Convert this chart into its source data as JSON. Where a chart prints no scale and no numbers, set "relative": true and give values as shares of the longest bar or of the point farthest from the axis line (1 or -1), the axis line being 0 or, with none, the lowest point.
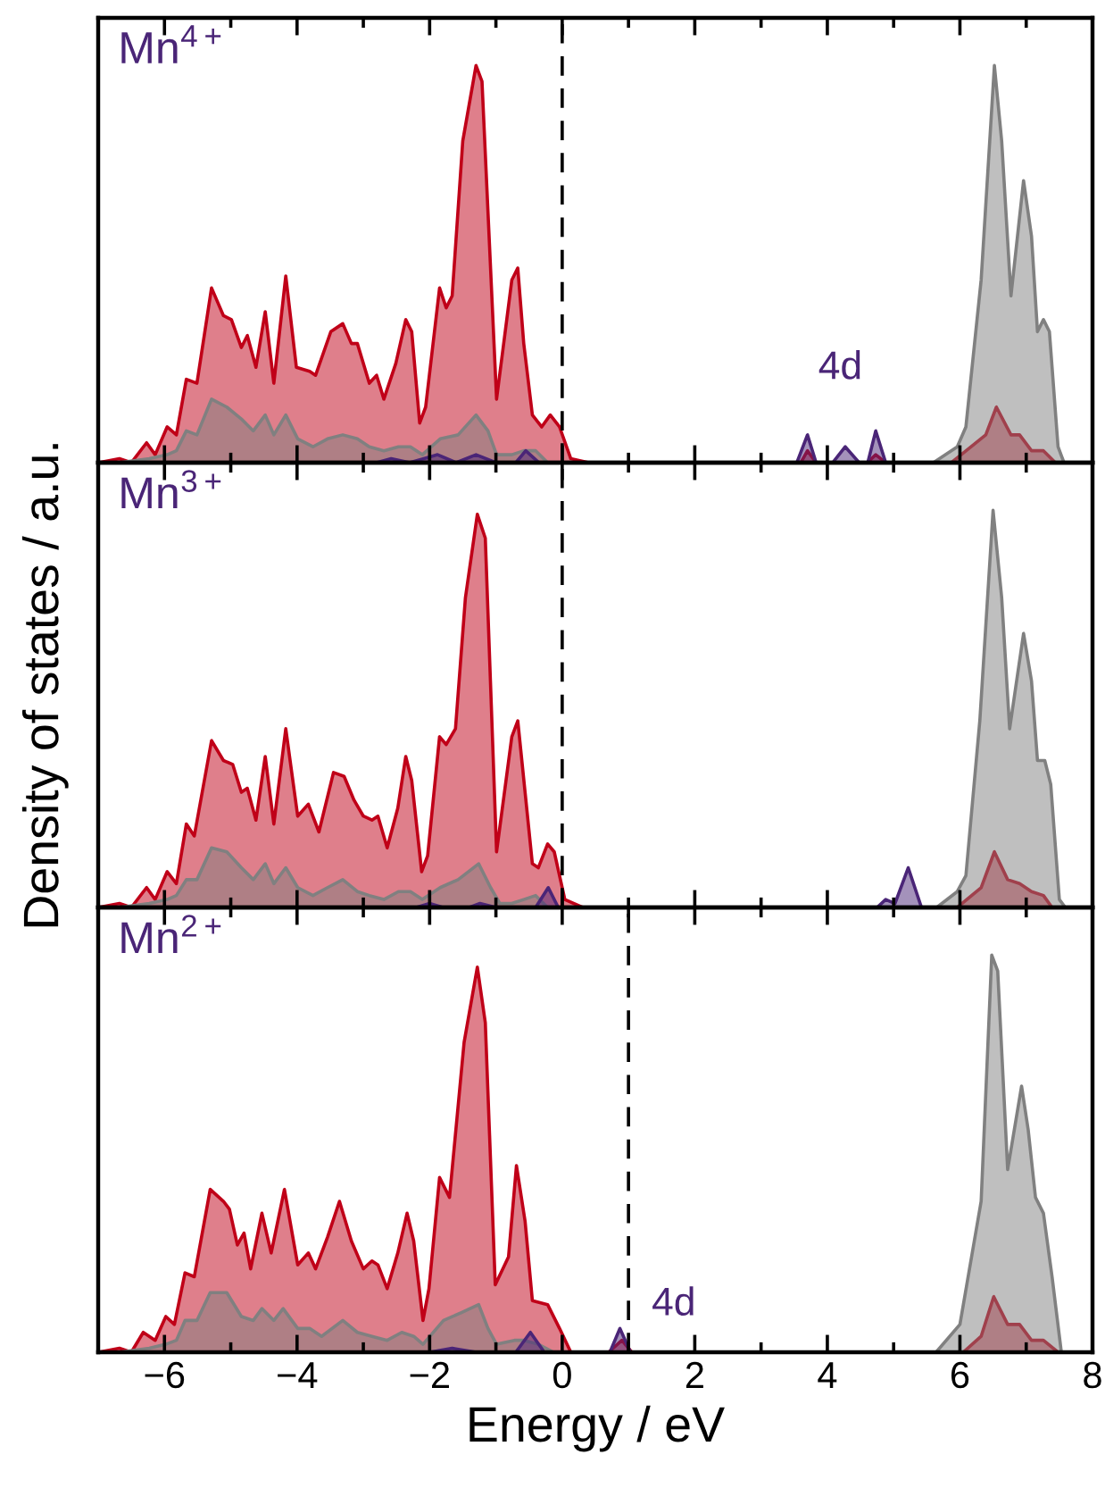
{
  "chart_data": [
    {
      "type": "area",
      "relative": true,
      "tick_labels": false,
      "grid": false,
      "legend": false,
      "xlim": [
        -7,
        8
      ],
      "xticks": [
        {
          "value": -6,
          "label": null
        },
        {
          "value": -5,
          "label": null
        },
        {
          "value": -4,
          "label": null
        },
        {
          "value": -3,
          "label": null
        },
        {
          "value": -2,
          "label": null
        },
        {
          "value": -1,
          "label": null
        },
        {
          "value": 0,
          "label": null
        },
        {
          "value": 1,
          "label": null
        },
        {
          "value": 2,
          "label": null
        },
        {
          "value": 3,
          "label": null
        },
        {
          "value": 4,
          "label": null
        },
        {
          "value": 5,
          "label": null
        },
        {
          "value": 6,
          "label": null
        },
        {
          "value": 7,
          "label": null
        },
        {
          "value": 8,
          "label": null
        }
      ],
      "annotations": [
        "Mn$^{4+}$",
        {
          "text": "4d",
          "x": 4.27,
          "y": 0.04
        }
      ],
      "ref_lines": [
        {
          "axis": "x",
          "value": 0,
          "color": "#000000",
          "line_style": "dashed"
        }
      ],
      "series": [
        {
          "color": "#c00018",
          "x": [
            -7,
            -6.68,
            -6.5,
            -6.27,
            -6.14,
            -5.96,
            -5.82,
            -5.67,
            -5.51,
            -5.29,
            -5.11,
            -4.99,
            -4.84,
            -4.75,
            -4.62,
            -4.48,
            -4.35,
            -4.17,
            -4.01,
            -3.81,
            -3.72,
            -3.49,
            -3.31,
            -3.18,
            -3.09,
            -2.91,
            -2.8,
            -2.69,
            -2.51,
            -2.36,
            -2.27,
            -2.15,
            -2.06,
            -1.85,
            -1.75,
            -1.66,
            -1.5,
            -1.3,
            -1.21,
            -0.99,
            -0.76,
            -0.67,
            -0.58,
            -0.45,
            -0.31,
            -0.18,
            -0.04,
            0.13,
            0.4,
            3.6,
            3.7,
            3.83,
            4.6,
            4.73,
            4.88,
            5.87,
            6.39,
            6.55,
            6.77,
            6.9,
            7.08,
            7.26,
            7.44,
            8
          ],
          "values": [
            0,
            0.01,
            0,
            0.05,
            0.02,
            0.09,
            0.07,
            0.21,
            0.2,
            0.44,
            0.37,
            0.36,
            0.29,
            0.32,
            0.24,
            0.38,
            0.2,
            0.47,
            0.24,
            0.23,
            0.22,
            0.33,
            0.35,
            0.3,
            0.3,
            0.2,
            0.22,
            0.16,
            0.25,
            0.36,
            0.33,
            0.1,
            0.14,
            0.44,
            0.39,
            0.42,
            0.81,
            1,
            0.96,
            0.16,
            0.46,
            0.49,
            0.3,
            0.12,
            0.09,
            0.12,
            0.09,
            0.01,
            0,
            0,
            0.03,
            0,
            0,
            0.02,
            0,
            0,
            0.07,
            0.14,
            0.07,
            0.07,
            0.03,
            0.03,
            0,
            0
          ]
        },
        {
          "color": "#808080",
          "x": [
            -6.68,
            -6.23,
            -5.96,
            -5.82,
            -5.67,
            -5.51,
            -5.29,
            -5.06,
            -4.84,
            -4.66,
            -4.48,
            -4.35,
            -4.17,
            -3.99,
            -3.76,
            -3.54,
            -3.31,
            -3.09,
            -2.91,
            -2.69,
            -2.47,
            -2.29,
            -2.11,
            -1.84,
            -1.57,
            -1.3,
            -1.12,
            -0.99,
            -0.76,
            -0.58,
            -0.4,
            -0.22,
            -0.04,
            5.6,
            5.96,
            6.09,
            6.32,
            6.52,
            6.63,
            6.77,
            6.96,
            7.08,
            7.17,
            7.26,
            7.35,
            7.48,
            7.57
          ],
          "values": [
            0,
            0.01,
            0.02,
            0.03,
            0.08,
            0.07,
            0.16,
            0.14,
            0.11,
            0.08,
            0.12,
            0.07,
            0.12,
            0.06,
            0.04,
            0.06,
            0.07,
            0.06,
            0.04,
            0.03,
            0.04,
            0.04,
            0.02,
            0.06,
            0.07,
            0.12,
            0.08,
            0.02,
            0.02,
            0.03,
            0.03,
            0,
            0,
            0,
            0.04,
            0.09,
            0.46,
            1,
            0.81,
            0.42,
            0.71,
            0.57,
            0.33,
            0.36,
            0.33,
            0.04,
            0
          ]
        },
        {
          "color": "#4a2577",
          "x": [
            -7,
            -2.8,
            -2.58,
            -2.3,
            -1.88,
            -1.6,
            -1.3,
            -1.0,
            -0.7,
            -0.55,
            -0.35,
            3.54,
            3.7,
            3.83,
            4.08,
            4.27,
            4.48,
            4.61,
            4.73,
            4.88,
            8
          ],
          "values": [
            0,
            0,
            0.01,
            0,
            0.02,
            0,
            0.02,
            0,
            0,
            0.03,
            0,
            0,
            0.07,
            0,
            0,
            0.04,
            0,
            0,
            0.08,
            0,
            0
          ]
        }
      ]
    },
    {
      "type": "area",
      "relative": true,
      "tick_labels": false,
      "grid": false,
      "legend": false,
      "ylabel": "Density of states / a.u.",
      "xlim": [
        -7,
        8
      ],
      "xticks": [
        {
          "value": -6,
          "label": null
        },
        {
          "value": -5,
          "label": null
        },
        {
          "value": -4,
          "label": null
        },
        {
          "value": -3,
          "label": null
        },
        {
          "value": -2,
          "label": null
        },
        {
          "value": -1,
          "label": null
        },
        {
          "value": 0,
          "label": null
        },
        {
          "value": 1,
          "label": null
        },
        {
          "value": 2,
          "label": null
        },
        {
          "value": 3,
          "label": null
        },
        {
          "value": 4,
          "label": null
        },
        {
          "value": 5,
          "label": null
        },
        {
          "value": 6,
          "label": null
        },
        {
          "value": 7,
          "label": null
        },
        {
          "value": 8,
          "label": null
        }
      ],
      "annotations": [
        "Mn$^{3+}$"
      ],
      "ref_lines": [
        {
          "axis": "x",
          "value": 0,
          "color": "#000000",
          "line_style": "dashed"
        }
      ],
      "series": [
        {
          "color": "#c00018",
          "x": [
            -7,
            -6.68,
            -6.5,
            -6.27,
            -6.14,
            -5.96,
            -5.82,
            -5.67,
            -5.55,
            -5.29,
            -5.11,
            -4.97,
            -4.84,
            -4.75,
            -4.62,
            -4.48,
            -4.35,
            -4.17,
            -3.99,
            -3.83,
            -3.67,
            -3.45,
            -3.29,
            -3.14,
            -3,
            -2.87,
            -2.78,
            -2.64,
            -2.48,
            -2.36,
            -2.27,
            -2.12,
            -2.03,
            -1.85,
            -1.75,
            -1.61,
            -1.46,
            -1.28,
            -1.16,
            -0.99,
            -0.76,
            -0.67,
            -0.56,
            -0.45,
            -0.36,
            -0.22,
            -0.12,
            0.04,
            0.31,
            5.96,
            6.32,
            6.52,
            6.72,
            6.9,
            7.08,
            7.26,
            7.39,
            8
          ],
          "values": [
            0,
            0.01,
            0,
            0.05,
            0.02,
            0.09,
            0.06,
            0.21,
            0.18,
            0.42,
            0.37,
            0.36,
            0.29,
            0.3,
            0.22,
            0.38,
            0.21,
            0.45,
            0.23,
            0.26,
            0.19,
            0.34,
            0.33,
            0.27,
            0.23,
            0.22,
            0.23,
            0.15,
            0.25,
            0.38,
            0.32,
            0.09,
            0.13,
            0.43,
            0.41,
            0.45,
            0.78,
            0.99,
            0.93,
            0.14,
            0.43,
            0.47,
            0.29,
            0.11,
            0.1,
            0.16,
            0.14,
            0.02,
            0,
            0,
            0.05,
            0.14,
            0.07,
            0.06,
            0.04,
            0.03,
            0,
            0
          ]
        },
        {
          "color": "#808080",
          "x": [
            -7,
            -6.68,
            -6.23,
            -5.96,
            -5.82,
            -5.67,
            -5.51,
            -5.29,
            -5.06,
            -4.84,
            -4.66,
            -4.48,
            -4.35,
            -4.17,
            -3.99,
            -3.76,
            -3.54,
            -3.31,
            -3.09,
            -2.91,
            -2.69,
            -2.47,
            -2.29,
            -2.11,
            -1.84,
            -1.57,
            -1.26,
            -1.08,
            -0.94,
            -0.76,
            -0.58,
            -0.4,
            -0.22,
            -0.04,
            5.65,
            5.96,
            6.09,
            6.3,
            6.5,
            6.63,
            6.75,
            6.96,
            7.08,
            7.17,
            7.28,
            7.37,
            7.5,
            7.59,
            8
          ],
          "values": [
            0,
            0,
            0.01,
            0.02,
            0.03,
            0.07,
            0.07,
            0.15,
            0.14,
            0.1,
            0.07,
            0.11,
            0.06,
            0.1,
            0.05,
            0.03,
            0.05,
            0.07,
            0.04,
            0.03,
            0.02,
            0.04,
            0.04,
            0.02,
            0.05,
            0.07,
            0.11,
            0.05,
            0.01,
            0.01,
            0.02,
            0.03,
            0,
            0,
            0,
            0.04,
            0.08,
            0.47,
            1,
            0.78,
            0.45,
            0.69,
            0.57,
            0.37,
            0.37,
            0.31,
            0.02,
            0,
            0
          ]
        },
        {
          "color": "#4a2577",
          "x": [
            -7,
            -2.2,
            -2,
            -1.8,
            -1.4,
            -1.24,
            -1.0,
            -0.4,
            -0.21,
            -0.06,
            4.75,
            4.88,
            5.02,
            5.22,
            5.42,
            8
          ],
          "values": [
            0,
            0,
            0.01,
            0,
            0,
            0.01,
            0,
            0,
            0.05,
            0,
            0,
            0.02,
            0.01,
            0.1,
            0,
            0
          ]
        }
      ]
    },
    {
      "type": "area",
      "relative": true,
      "tick_labels": "x",
      "grid": false,
      "legend": false,
      "xlabel": "Energy / eV",
      "xlim": [
        -7,
        8
      ],
      "xticks": [
        {
          "value": -6,
          "label": "−6"
        },
        {
          "value": -5,
          "label": null
        },
        {
          "value": -4,
          "label": "−4"
        },
        {
          "value": -3,
          "label": null
        },
        {
          "value": -2,
          "label": "−2"
        },
        {
          "value": -1,
          "label": null
        },
        0,
        {
          "value": 1,
          "label": null
        },
        2,
        {
          "value": 3,
          "label": null
        },
        4,
        {
          "value": 5,
          "label": null
        },
        6,
        {
          "value": 7,
          "label": null
        },
        8
      ],
      "annotations": [
        "Mn$^{2+}$",
        {
          "text": "4d",
          "x": 0.87,
          "y": 0.06
        }
      ],
      "ref_lines": [
        {
          "axis": "x",
          "value": 1,
          "color": "#000000",
          "line_style": "dashed"
        }
      ],
      "series": [
        {
          "color": "#c00018",
          "x": [
            -7,
            -6.68,
            -6.5,
            -6.32,
            -6.14,
            -5.98,
            -5.85,
            -5.69,
            -5.55,
            -5.31,
            -5.11,
            -5.02,
            -4.9,
            -4.8,
            -4.7,
            -4.53,
            -4.39,
            -4.19,
            -3.99,
            -3.83,
            -3.72,
            -3.54,
            -3.36,
            -3.18,
            -3,
            -2.87,
            -2.78,
            -2.64,
            -2.48,
            -2.34,
            -2.24,
            -2.1,
            -2.01,
            -1.85,
            -1.7,
            -1.48,
            -1.28,
            -1.16,
            -1.01,
            -0.81,
            -0.69,
            -0.56,
            -0.45,
            -0.22,
            -0.04,
            0.13,
            0.7,
            0.9,
            1.05,
            6.05,
            6.32,
            6.51,
            6.72,
            6.9,
            7.08,
            7.26,
            7.48,
            8
          ],
          "values": [
            0,
            0.01,
            0,
            0.05,
            0.03,
            0.09,
            0.07,
            0.2,
            0.19,
            0.41,
            0.38,
            0.36,
            0.27,
            0.3,
            0.21,
            0.35,
            0.25,
            0.41,
            0.22,
            0.25,
            0.21,
            0.29,
            0.38,
            0.28,
            0.21,
            0.23,
            0.22,
            0.16,
            0.25,
            0.35,
            0.28,
            0.08,
            0.16,
            0.44,
            0.39,
            0.78,
            0.97,
            0.83,
            0.17,
            0.24,
            0.47,
            0.33,
            0.13,
            0.12,
            0.06,
            0,
            0,
            0.03,
            0,
            0,
            0.04,
            0.14,
            0.07,
            0.07,
            0.03,
            0.03,
            0,
            0
          ]
        },
        {
          "color": "#808080",
          "x": [
            -7,
            -6.68,
            -6.23,
            -5.98,
            -5.82,
            -5.69,
            -5.51,
            -5.31,
            -5.06,
            -4.84,
            -4.66,
            -4.53,
            -4.35,
            -4.21,
            -3.99,
            -3.81,
            -3.63,
            -3.31,
            -3.09,
            -2.87,
            -2.64,
            -2.42,
            -2.24,
            -2.1,
            -1.79,
            -1.52,
            -1.26,
            -1.12,
            -0.99,
            -0.72,
            -0.58,
            -0.36,
            -0.13,
            0.04,
            5.64,
            6,
            6.32,
            6.48,
            6.57,
            6.72,
            6.93,
            7.03,
            7.14,
            7.26,
            7.39,
            7.53,
            8
          ],
          "values": [
            0,
            0,
            0.01,
            0.02,
            0.03,
            0.08,
            0.08,
            0.15,
            0.15,
            0.09,
            0.08,
            0.11,
            0.08,
            0.11,
            0.06,
            0.06,
            0.04,
            0.08,
            0.05,
            0.04,
            0.03,
            0.05,
            0.04,
            0.02,
            0.08,
            0.1,
            0.12,
            0.06,
            0.02,
            0.03,
            0.03,
            0.02,
            0,
            0,
            0,
            0.07,
            0.38,
            1,
            0.96,
            0.46,
            0.67,
            0.56,
            0.39,
            0.35,
            0.19,
            0,
            0
          ]
        },
        {
          "color": "#4a2577",
          "x": [
            -7,
            -2,
            -1.66,
            -1.3,
            -0.7,
            -0.48,
            -0.27,
            0.72,
            0.87,
            1.03,
            8
          ],
          "values": [
            0,
            0,
            0.01,
            0,
            0,
            0.05,
            0,
            0,
            0.06,
            0,
            0
          ]
        }
      ]
    }
  ]
}
